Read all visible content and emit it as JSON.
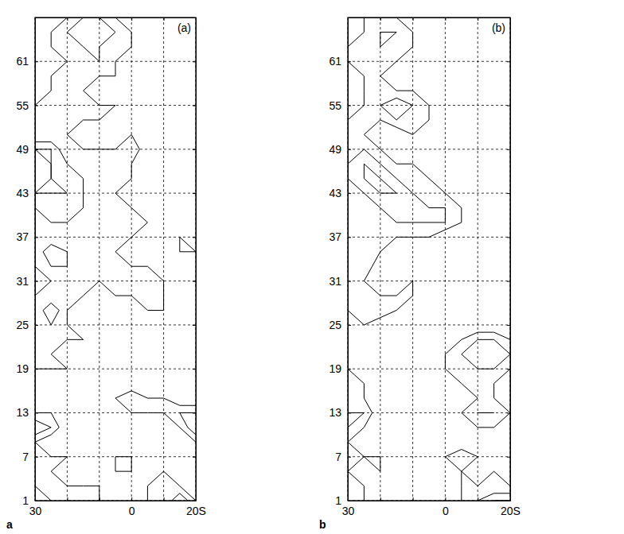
{
  "chart_data": [
    {
      "type": "contour",
      "title": "(a)",
      "subtitle": "a",
      "grid": true,
      "xlim": [
        30,
        -20
      ],
      "ylim": [
        1,
        67
      ],
      "xticks": [
        30,
        {
          "value": 20,
          "label": null
        },
        {
          "value": 10,
          "label": null
        },
        0,
        {
          "value": -10,
          "label": null
        },
        {
          "value": -20,
          "label": "20S"
        }
      ],
      "yticks": [
        1,
        7,
        13,
        19,
        25,
        31,
        37,
        43,
        49,
        55,
        61
      ],
      "levels": [
        1,
        2,
        3
      ],
      "x": [
        30,
        25,
        20,
        15,
        10,
        5,
        0,
        -5,
        -10,
        -15,
        -20
      ],
      "y": [
        1,
        3,
        5,
        7,
        9,
        11,
        13,
        15,
        17,
        19,
        21,
        23,
        25,
        27,
        29,
        31,
        33,
        35,
        37,
        39,
        41,
        43,
        45,
        47,
        49,
        51,
        53,
        55,
        57,
        59,
        61,
        63,
        65,
        67
      ],
      "z": [
        [
          0,
          1,
          1,
          2,
          1,
          0,
          0,
          1,
          1,
          3,
          1
        ],
        [
          1,
          2,
          1,
          1,
          1,
          0,
          0,
          1,
          2,
          1,
          0
        ],
        [
          1,
          1,
          0,
          0,
          0,
          1,
          1,
          0,
          1,
          0,
          0
        ],
        [
          2,
          1,
          1,
          0,
          0,
          1,
          1,
          0,
          0,
          0,
          0
        ],
        [
          1,
          0,
          0,
          0,
          0,
          0,
          0,
          0,
          0,
          0,
          1
        ],
        [
          3,
          2,
          0,
          0,
          0,
          0,
          0,
          0,
          0,
          1,
          3
        ],
        [
          1,
          1,
          0,
          0,
          0,
          0,
          1,
          1,
          1,
          2,
          2
        ],
        [
          0,
          0,
          0,
          0,
          0,
          1,
          2,
          1,
          1,
          0,
          0
        ],
        [
          0,
          0,
          0,
          0,
          0,
          0,
          0,
          0,
          0,
          0,
          0
        ],
        [
          1,
          1,
          1,
          0,
          1,
          0,
          0,
          0,
          0,
          0,
          1
        ],
        [
          1,
          1,
          0,
          0,
          0,
          0,
          0,
          0,
          1,
          0,
          0
        ],
        [
          1,
          1,
          1,
          1,
          0,
          0,
          0,
          0,
          0,
          0,
          0
        ],
        [
          1,
          2,
          1,
          0,
          0,
          0,
          1,
          0,
          0,
          1,
          0
        ],
        [
          1,
          3,
          1,
          0,
          0,
          0,
          0,
          1,
          1,
          0,
          0
        ],
        [
          1,
          1,
          1,
          1,
          0,
          1,
          1,
          2,
          1,
          0,
          1
        ],
        [
          0,
          1,
          1,
          1,
          1,
          2,
          1,
          2,
          1,
          0,
          0
        ],
        [
          1,
          2,
          2,
          1,
          2,
          1,
          1,
          1,
          0,
          0,
          0
        ],
        [
          1,
          3,
          2,
          1,
          1,
          1,
          0,
          0,
          0,
          1,
          1
        ],
        [
          1,
          1,
          1,
          1,
          1,
          1,
          1,
          0,
          0,
          1,
          0
        ],
        [
          1,
          2,
          2,
          1,
          1,
          1,
          1,
          1,
          0,
          0,
          0
        ],
        [
          2,
          2,
          2,
          2,
          1,
          1,
          1,
          0,
          0,
          0,
          0
        ],
        [
          3,
          3,
          3,
          2,
          1,
          1,
          0,
          0,
          0,
          0,
          1
        ],
        [
          2,
          3,
          2,
          2,
          1,
          2,
          1,
          0,
          0,
          0,
          0
        ],
        [
          2,
          3,
          2,
          1,
          2,
          1,
          1,
          0,
          0,
          0,
          0
        ],
        [
          3,
          3,
          1,
          1,
          1,
          1,
          2,
          0,
          0,
          0,
          0
        ],
        [
          1,
          1,
          1,
          0,
          0,
          0,
          1,
          0,
          0,
          0,
          0
        ],
        [
          1,
          1,
          1,
          1,
          1,
          0,
          0,
          0,
          0,
          0,
          0
        ],
        [
          1,
          2,
          2,
          2,
          1,
          1,
          0,
          0,
          0,
          0,
          0
        ],
        [
          0,
          1,
          1,
          1,
          0,
          0,
          0,
          0,
          0,
          0,
          0
        ],
        [
          0,
          1,
          1,
          1,
          1,
          1,
          0,
          0,
          0,
          0,
          0
        ],
        [
          0,
          0,
          1,
          1,
          2,
          1,
          0,
          0,
          0,
          0,
          1
        ],
        [
          0,
          1,
          1,
          2,
          2,
          1,
          1,
          0,
          0,
          0,
          0
        ],
        [
          0,
          1,
          2,
          3,
          3,
          2,
          1,
          0,
          0,
          0,
          1
        ],
        [
          0,
          0,
          1,
          2,
          2,
          1,
          0,
          0,
          0,
          0,
          0
        ]
      ]
    },
    {
      "type": "contour",
      "title": "(b)",
      "subtitle": "b",
      "grid": true,
      "xlim": [
        30,
        -20
      ],
      "ylim": [
        1,
        67
      ],
      "xticks": [
        30,
        {
          "value": 20,
          "label": null
        },
        {
          "value": 10,
          "label": null
        },
        0,
        {
          "value": -10,
          "label": null
        },
        {
          "value": -20,
          "label": "20S"
        }
      ],
      "yticks": [
        1,
        7,
        13,
        19,
        25,
        31,
        37,
        43,
        49,
        55,
        61
      ],
      "levels": [
        1,
        2,
        3
      ],
      "x": [
        30,
        25,
        20,
        15,
        10,
        5,
        0,
        -5,
        -10,
        -15,
        -20
      ],
      "y": [
        1,
        3,
        5,
        7,
        9,
        11,
        13,
        15,
        17,
        19,
        21,
        23,
        25,
        27,
        29,
        31,
        33,
        35,
        37,
        39,
        41,
        43,
        45,
        47,
        49,
        51,
        53,
        55,
        57,
        59,
        61,
        63,
        65,
        67
      ],
      "z": [
        [
          1,
          1,
          0,
          0,
          0,
          0,
          0,
          1,
          2,
          3,
          3
        ],
        [
          1,
          1,
          0,
          0,
          0,
          0,
          0,
          1,
          1,
          1,
          1
        ],
        [
          1,
          0,
          1,
          0,
          0,
          0,
          0,
          1,
          0,
          1,
          0
        ],
        [
          1,
          1,
          1,
          0,
          0,
          0,
          1,
          2,
          1,
          0,
          0
        ],
        [
          1,
          0,
          0,
          0,
          0,
          0,
          0,
          0,
          0,
          0,
          0
        ],
        [
          2,
          1,
          0,
          0,
          0,
          0,
          0,
          0,
          1,
          1,
          0
        ],
        [
          2,
          2,
          0,
          0,
          0,
          0,
          0,
          1,
          2,
          2,
          1
        ],
        [
          1,
          1,
          0,
          0,
          0,
          0,
          0,
          0,
          1,
          1,
          0
        ],
        [
          2,
          1,
          0,
          0,
          0,
          0,
          0,
          1,
          1,
          1,
          0
        ],
        [
          1,
          0,
          0,
          0,
          0,
          0,
          1,
          1,
          2,
          2,
          1
        ],
        [
          1,
          0,
          0,
          0,
          0,
          0,
          1,
          2,
          3,
          3,
          2
        ],
        [
          0,
          0,
          0,
          0,
          0,
          0,
          0,
          1,
          2,
          2,
          1
        ],
        [
          0,
          1,
          0,
          0,
          0,
          0,
          0,
          0,
          0,
          0,
          0
        ],
        [
          1,
          2,
          2,
          1,
          0,
          0,
          0,
          0,
          0,
          0,
          0
        ],
        [
          1,
          1,
          1,
          1,
          1,
          0,
          0,
          0,
          0,
          0,
          0
        ],
        [
          1,
          1,
          0,
          0,
          1,
          0,
          0,
          0,
          0,
          0,
          1
        ],
        [
          1,
          2,
          0,
          1,
          0,
          0,
          0,
          0,
          0,
          0,
          0
        ],
        [
          1,
          1,
          1,
          0,
          0,
          0,
          0,
          0,
          0,
          1,
          0
        ],
        [
          1,
          1,
          1,
          1,
          1,
          1,
          0,
          0,
          1,
          0,
          0
        ],
        [
          1,
          1,
          1,
          2,
          2,
          2,
          2,
          1,
          0,
          0,
          0
        ],
        [
          1,
          1,
          2,
          2,
          3,
          2,
          2,
          1,
          0,
          0,
          0
        ],
        [
          1,
          2,
          3,
          3,
          2,
          1,
          1,
          0,
          0,
          0,
          0
        ],
        [
          2,
          3,
          3,
          2,
          1,
          1,
          0,
          0,
          0,
          0,
          0
        ],
        [
          2,
          3,
          2,
          1,
          1,
          0,
          0,
          0,
          0,
          0,
          0
        ],
        [
          1,
          2,
          1,
          0,
          0,
          0,
          0,
          1,
          0,
          0,
          0
        ],
        [
          1,
          1,
          0,
          0,
          1,
          0,
          0,
          0,
          0,
          0,
          0
        ],
        [
          1,
          1,
          1,
          2,
          1,
          1,
          0,
          0,
          0,
          0,
          0
        ],
        [
          0,
          1,
          2,
          3,
          2,
          1,
          0,
          0,
          0,
          0,
          0
        ],
        [
          0,
          1,
          1,
          1,
          1,
          0,
          0,
          0,
          0,
          0,
          0
        ],
        [
          0,
          1,
          1,
          0,
          0,
          0,
          0,
          0,
          0,
          0,
          0
        ],
        [
          1,
          1,
          1,
          1,
          0,
          0,
          0,
          0,
          0,
          0,
          0
        ],
        [
          1,
          1,
          2,
          1,
          1,
          0,
          0,
          0,
          0,
          0,
          1
        ],
        [
          0,
          1,
          2,
          2,
          1,
          0,
          0,
          0,
          0,
          0,
          0
        ],
        [
          0,
          1,
          1,
          1,
          0,
          0,
          0,
          0,
          0,
          0,
          0
        ]
      ]
    }
  ]
}
